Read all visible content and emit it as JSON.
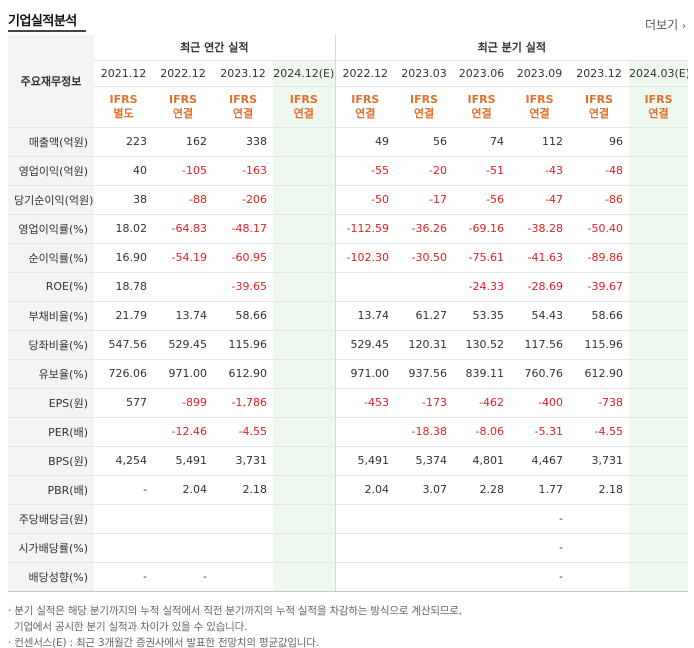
{
  "header": {
    "title": "기업실적분석",
    "more_label": "더보기",
    "more_arrow": "›"
  },
  "table": {
    "row_header_label": "주요재무정보",
    "group_annual": "최근 연간 실적",
    "group_quarterly": "최근 분기 실적",
    "periods": [
      "2021.12",
      "2022.12",
      "2023.12",
      "2024.12(E)",
      "2022.12",
      "2023.03",
      "2023.06",
      "2023.09",
      "2023.12",
      "2024.03(E)"
    ],
    "basis_top": [
      "IFRS",
      "IFRS",
      "IFRS",
      "IFRS",
      "IFRS",
      "IFRS",
      "IFRS",
      "IFRS",
      "IFRS",
      "IFRS"
    ],
    "basis_bottom": [
      "별도",
      "연결",
      "연결",
      "연결",
      "연결",
      "연결",
      "연결",
      "연결",
      "연결",
      "연결"
    ],
    "rows": [
      {
        "label": "매출액(억원)",
        "values": [
          "223",
          "162",
          "338",
          "",
          "49",
          "56",
          "74",
          "112",
          "96",
          ""
        ]
      },
      {
        "label": "영업이익(억원)",
        "values": [
          "40",
          "-105",
          "-163",
          "",
          "-55",
          "-20",
          "-51",
          "-43",
          "-48",
          ""
        ]
      },
      {
        "label": "당기순이익(억원)",
        "values": [
          "38",
          "-88",
          "-206",
          "",
          "-50",
          "-17",
          "-56",
          "-47",
          "-86",
          ""
        ]
      },
      {
        "label": "영업이익률(%)",
        "values": [
          "18.02",
          "-64.83",
          "-48.17",
          "",
          "-112.59",
          "-36.26",
          "-69.16",
          "-38.28",
          "-50.40",
          ""
        ]
      },
      {
        "label": "순이익률(%)",
        "values": [
          "16.90",
          "-54.19",
          "-60.95",
          "",
          "-102.30",
          "-30.50",
          "-75.61",
          "-41.63",
          "-89.86",
          ""
        ]
      },
      {
        "label": "ROE(%)",
        "values": [
          "18.78",
          "",
          "-39.65",
          "",
          "",
          "",
          "-24.33",
          "-28.69",
          "-39.67",
          ""
        ]
      },
      {
        "label": "부채비율(%)",
        "values": [
          "21.79",
          "13.74",
          "58.66",
          "",
          "13.74",
          "61.27",
          "53.35",
          "54.43",
          "58.66",
          ""
        ]
      },
      {
        "label": "당좌비율(%)",
        "values": [
          "547.56",
          "529.45",
          "115.96",
          "",
          "529.45",
          "120.31",
          "130.52",
          "117.56",
          "115.96",
          ""
        ]
      },
      {
        "label": "유보율(%)",
        "values": [
          "726.06",
          "971.00",
          "612.90",
          "",
          "971.00",
          "937.56",
          "839.11",
          "760.76",
          "612.90",
          ""
        ]
      },
      {
        "label": "EPS(원)",
        "values": [
          "577",
          "-899",
          "-1,786",
          "",
          "-453",
          "-173",
          "-462",
          "-400",
          "-738",
          ""
        ]
      },
      {
        "label": "PER(배)",
        "values": [
          "",
          "-12.46",
          "-4.55",
          "",
          "",
          "-18.38",
          "-8.06",
          "-5.31",
          "-4.55",
          ""
        ]
      },
      {
        "label": "BPS(원)",
        "values": [
          "4,254",
          "5,491",
          "3,731",
          "",
          "5,491",
          "5,374",
          "4,801",
          "4,467",
          "3,731",
          ""
        ]
      },
      {
        "label": "PBR(배)",
        "values": [
          "-",
          "2.04",
          "2.18",
          "",
          "2.04",
          "3.07",
          "2.28",
          "1.77",
          "2.18",
          ""
        ]
      },
      {
        "label": "주당배당금(원)",
        "values": [
          "",
          "",
          "",
          "",
          "",
          "",
          "",
          "-",
          "",
          ""
        ]
      },
      {
        "label": "시가배당률(%)",
        "values": [
          "",
          "",
          "",
          "",
          "",
          "",
          "",
          "-",
          "",
          ""
        ]
      },
      {
        "label": "배당성향(%)",
        "values": [
          "-",
          "-",
          "",
          "",
          "",
          "",
          "",
          "-",
          "",
          ""
        ]
      }
    ]
  },
  "notes": [
    "· 분기 실적은 해당 분기까지의 누적 실적에서 직전 분기까지의 누적 실적을 차감하는 방식으로 계산되므로,",
    "  기업에서 공시한 분기 실적과 차이가 있을 수 있습니다.",
    "· 컨센서스(E) : 최근 3개월간 증권사에서 발표한 전망치의 평균값입니다."
  ],
  "colors": {
    "negative": "#e02020",
    "ifrs": "#e0712f",
    "forecast_bg": "#eef8ee",
    "label_bg": "#f4f4f4"
  }
}
